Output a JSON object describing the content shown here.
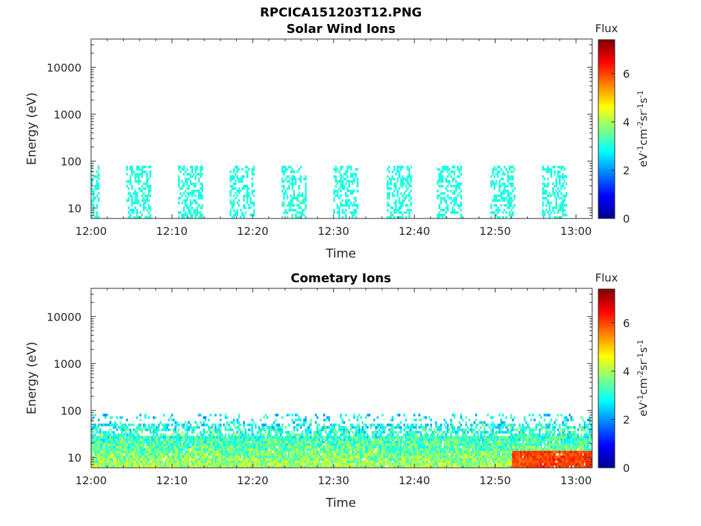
{
  "figure": {
    "title": "RPCICA151203T12.PNG"
  },
  "colors": {
    "axis": "#262626",
    "colormap": [
      "#00008f",
      "#0000ff",
      "#0080ff",
      "#00ffff",
      "#80ff80",
      "#ffff00",
      "#ff8000",
      "#ff0000",
      "#800000"
    ]
  },
  "chart_data": [
    {
      "type": "heatmap",
      "title": "Solar Wind Ions",
      "xlabel": "Time",
      "ylabel": "Energy (eV)",
      "x_tick_labels": [
        "12:00",
        "12:10",
        "12:20",
        "12:30",
        "12:40",
        "12:50",
        "13:00"
      ],
      "y_tick_labels": [
        "10",
        "100",
        "1000",
        "10000"
      ],
      "y_scale": "log",
      "ylim": [
        6,
        40000
      ],
      "xlim_minutes": [
        0,
        62
      ],
      "colorbar": {
        "title": "Flux",
        "label": "eV-1cm-2sr-1s-1",
        "ticks": [
          "0",
          "2",
          "4",
          "6"
        ],
        "range": [
          0,
          7.4
        ]
      },
      "scan_windows_minutes": [
        [
          0,
          1
        ],
        [
          4.2,
          7.4
        ],
        [
          10.6,
          13.8
        ],
        [
          17.1,
          20.2
        ],
        [
          23.4,
          26.5
        ],
        [
          29.8,
          33.0
        ],
        [
          36.5,
          39.6
        ],
        [
          42.7,
          45.7
        ],
        [
          49.2,
          52.3
        ],
        [
          55.6,
          58.8
        ]
      ],
      "energy_range_eV": [
        6,
        80
      ],
      "typical_flux": 3.0,
      "panel_grid": "off"
    },
    {
      "type": "heatmap",
      "title": "Cometary Ions",
      "xlabel": "Time",
      "ylabel": "Energy (eV)",
      "x_tick_labels": [
        "12:00",
        "12:10",
        "12:20",
        "12:30",
        "12:40",
        "12:50",
        "13:00"
      ],
      "y_tick_labels": [
        "10",
        "100",
        "1000",
        "10000"
      ],
      "y_scale": "log",
      "ylim": [
        6,
        40000
      ],
      "xlim_minutes": [
        0,
        62
      ],
      "colorbar": {
        "title": "Flux",
        "label": "eV-1cm-2sr-1s-1",
        "ticks": [
          "0",
          "2",
          "4",
          "6"
        ],
        "range": [
          0,
          7.4
        ]
      },
      "continuous_minutes": [
        0,
        62
      ],
      "energy_range_eV": [
        6,
        85
      ],
      "typical_flux": 4.0,
      "peak_flux_region_minutes": [
        52,
        62
      ],
      "peak_flux": 6.0,
      "panel_grid": "off"
    }
  ]
}
